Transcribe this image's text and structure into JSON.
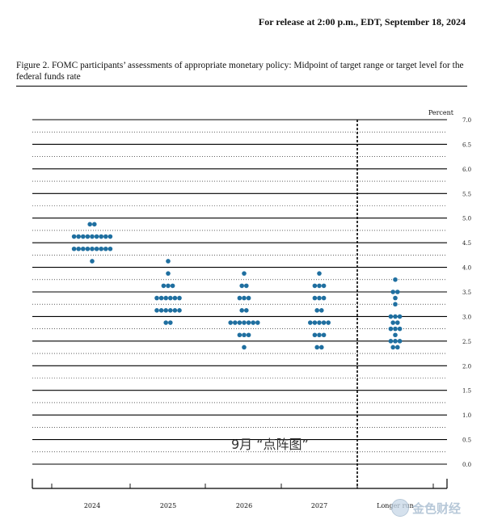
{
  "header": {
    "release_text": "For release at 2:00 p.m., EDT, September 18, 2024",
    "figure_title": "Figure 2.  FOMC participants’ assessments of appropriate monetary policy: Midpoint of target range or target level for the federal funds rate"
  },
  "watermark": {
    "text": "9月 “点阵图”",
    "logo_text": "金色财经"
  },
  "colors": {
    "dot": "#1f6fa0",
    "grid": "#000000",
    "divider": "#000000"
  },
  "chart_data": {
    "type": "scatter",
    "y_unit_label": "Percent",
    "ylim": [
      0.0,
      7.0
    ],
    "y_ticks": [
      "0.0",
      "0.5",
      "1.0",
      "1.5",
      "2.0",
      "2.5",
      "3.0",
      "3.5",
      "4.0",
      "4.5",
      "5.0",
      "5.5",
      "6.0",
      "6.5",
      "7.0"
    ],
    "categories": [
      "2024",
      "2025",
      "2026",
      "2027",
      "Longer run"
    ],
    "dots": [
      {
        "category": "2024",
        "counts": {
          "4.875": 2,
          "4.625": 9,
          "4.375": 9,
          "4.125": 1
        }
      },
      {
        "category": "2025",
        "counts": {
          "4.125": 1,
          "3.875": 1,
          "3.625": 3,
          "3.375": 6,
          "3.125": 6,
          "2.875": 2
        }
      },
      {
        "category": "2026",
        "counts": {
          "3.875": 1,
          "3.625": 2,
          "3.375": 3,
          "3.125": 2,
          "2.875": 7,
          "2.625": 3,
          "2.375": 1
        }
      },
      {
        "category": "2027",
        "counts": {
          "3.875": 1,
          "3.625": 3,
          "3.375": 3,
          "3.125": 2,
          "2.875": 5,
          "2.625": 3,
          "2.375": 2
        }
      },
      {
        "category": "Longer run",
        "counts": {
          "3.75": 1,
          "3.5": 2,
          "3.375": 1,
          "3.25": 1,
          "3.0": 3,
          "2.875": 2,
          "2.75": 3,
          "2.625": 1,
          "2.5": 3,
          "2.375": 2
        }
      }
    ],
    "legend": "none",
    "grid": true
  }
}
